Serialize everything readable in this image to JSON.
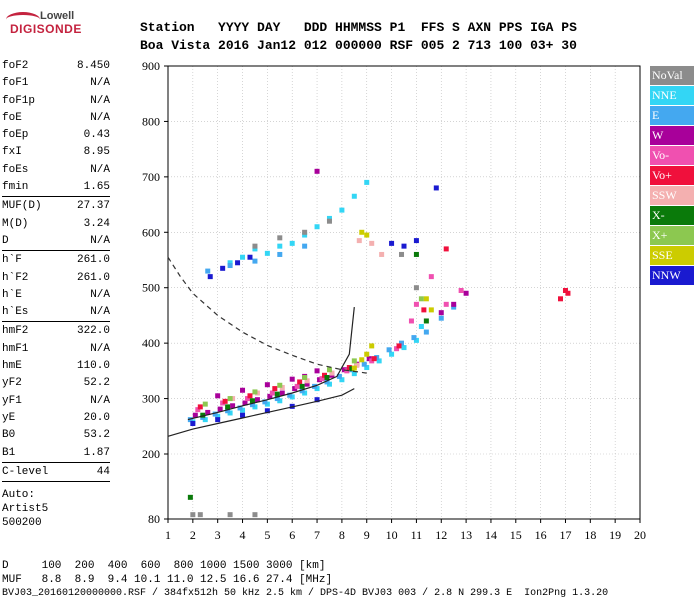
{
  "header": {
    "line1": "Station   YYYY DAY   DDD HHMMSS P1  FFS S AXN PPS IGA PS",
    "line2": "Boa Vista 2016 Jan12 012 000000 RSF 005 2 713 100 03+ 30"
  },
  "logo": {
    "top": "Lowell",
    "main": "DIGISONDE"
  },
  "params": [
    {
      "label": "foF2",
      "value": "8.450"
    },
    {
      "label": "foF1",
      "value": "N/A"
    },
    {
      "label": "foF1p",
      "value": "N/A"
    },
    {
      "label": "foE",
      "value": "N/A"
    },
    {
      "label": "foEp",
      "value": "0.43"
    },
    {
      "label": "fxI",
      "value": "8.95"
    },
    {
      "label": "foEs",
      "value": "N/A"
    },
    {
      "label": "fmin",
      "value": "1.65"
    },
    {
      "sep": true
    },
    {
      "label": "MUF(D)",
      "value": "27.37"
    },
    {
      "label": "M(D)",
      "value": "3.24"
    },
    {
      "label": "D",
      "value": "N/A"
    },
    {
      "sep": true
    },
    {
      "label": "h`F",
      "value": "261.0"
    },
    {
      "label": "h`F2",
      "value": "261.0"
    },
    {
      "label": "h`E",
      "value": "N/A"
    },
    {
      "label": "h`Es",
      "value": "N/A"
    },
    {
      "sep": true
    },
    {
      "label": "hmF2",
      "value": "322.0"
    },
    {
      "label": "hmF1",
      "value": "N/A"
    },
    {
      "label": "hmE",
      "value": "110.0"
    },
    {
      "label": "yF2",
      "value": "52.2"
    },
    {
      "label": "yF1",
      "value": "N/A"
    },
    {
      "label": "yE",
      "value": "20.0"
    },
    {
      "label": "B0",
      "value": "53.2"
    },
    {
      "label": "B1",
      "value": "1.87"
    },
    {
      "sep": true
    },
    {
      "label": "C-level",
      "value": "44"
    },
    {
      "sep": true
    }
  ],
  "auto_lines": [
    "Auto:",
    "Artist5",
    "500200"
  ],
  "legend": [
    {
      "label": "NoVal",
      "color": "#8c8c8c"
    },
    {
      "label": "NNE",
      "color": "#33d6f5"
    },
    {
      "label": "E",
      "color": "#44a8f0"
    },
    {
      "label": "W",
      "color": "#a8009a"
    },
    {
      "label": "Vo-",
      "color": "#f050b0"
    },
    {
      "label": "Vo+",
      "color": "#f0103c"
    },
    {
      "label": "SSW",
      "color": "#f4b0b0"
    },
    {
      "label": "X-",
      "color": "#0a7a0a"
    },
    {
      "label": "X+",
      "color": "#8cc850"
    },
    {
      "label": "SSE",
      "color": "#cccc00"
    },
    {
      "label": "NNW",
      "color": "#1a1ad0"
    }
  ],
  "footer": {
    "line1": "D     100  200  400  600  800 1000 1500 3000 [km]",
    "line2": "MUF   8.8  8.9  9.4 10.1 11.0 12.5 16.6 27.4 [MHz]",
    "line3": "BVJ03_20160120000000.RSF / 384fx512h 50 kHz 2.5 km / DPS-4D BVJ03 003 / 2.8 N 299.3 E  Ion2Png 1.3.20"
  },
  "chart_data": {
    "type": "scatter",
    "xlim": [
      1,
      20
    ],
    "ylim": [
      80,
      900
    ],
    "xticks": [
      "1",
      "2",
      "3",
      "4",
      "5",
      "6",
      "7",
      "8",
      "9",
      "10",
      "11",
      "12",
      "13",
      "14",
      "15",
      "16",
      "17",
      "18",
      "19",
      "20"
    ],
    "yticks": [
      "80",
      "200",
      "300",
      "400",
      "500",
      "600",
      "700",
      "800",
      "900"
    ],
    "ytick_values": [
      80,
      200,
      300,
      400,
      500,
      600,
      700,
      800,
      900
    ],
    "grid": true,
    "series": [
      {
        "label": "NNE",
        "color": "#33d6f5",
        "points": [
          [
            2.0,
            258
          ],
          [
            2.5,
            262
          ],
          [
            3.0,
            268
          ],
          [
            3.5,
            274
          ],
          [
            4.0,
            279
          ],
          [
            4.5,
            285
          ],
          [
            5.0,
            290
          ],
          [
            5.5,
            296
          ],
          [
            6.0,
            303
          ],
          [
            6.5,
            310
          ],
          [
            7.0,
            318
          ],
          [
            7.5,
            326
          ],
          [
            8.0,
            334
          ],
          [
            8.5,
            345
          ],
          [
            9.0,
            356
          ],
          [
            9.5,
            368
          ],
          [
            10.0,
            380
          ],
          [
            10.5,
            392
          ],
          [
            11.0,
            405
          ],
          [
            11.2,
            430
          ],
          [
            3.5,
            545
          ],
          [
            4.0,
            555
          ],
          [
            4.5,
            570
          ],
          [
            5.0,
            562
          ],
          [
            5.5,
            575
          ],
          [
            6.0,
            580
          ],
          [
            6.5,
            595
          ],
          [
            7.0,
            610
          ],
          [
            7.5,
            625
          ],
          [
            8.0,
            640
          ],
          [
            8.5,
            665
          ],
          [
            9.0,
            690
          ]
        ]
      },
      {
        "label": "E",
        "color": "#44a8f0",
        "points": [
          [
            1.9,
            262
          ],
          [
            2.4,
            266
          ],
          [
            2.9,
            272
          ],
          [
            3.4,
            278
          ],
          [
            3.9,
            283
          ],
          [
            4.4,
            289
          ],
          [
            4.9,
            294
          ],
          [
            5.4,
            300
          ],
          [
            5.9,
            306
          ],
          [
            6.4,
            314
          ],
          [
            6.9,
            322
          ],
          [
            7.4,
            330
          ],
          [
            7.9,
            340
          ],
          [
            8.4,
            352
          ],
          [
            8.9,
            362
          ],
          [
            9.4,
            374
          ],
          [
            9.9,
            388
          ],
          [
            10.4,
            400
          ],
          [
            10.9,
            410
          ],
          [
            11.4,
            420
          ],
          [
            12.0,
            445
          ],
          [
            12.5,
            465
          ],
          [
            2.6,
            530
          ],
          [
            3.5,
            540
          ],
          [
            4.5,
            548
          ],
          [
            5.5,
            560
          ],
          [
            6.5,
            575
          ]
        ]
      },
      {
        "label": "W",
        "color": "#a8009a",
        "points": [
          [
            2.1,
            270
          ],
          [
            2.6,
            275
          ],
          [
            3.1,
            281
          ],
          [
            3.6,
            287
          ],
          [
            4.1,
            292
          ],
          [
            4.6,
            298
          ],
          [
            5.1,
            304
          ],
          [
            5.6,
            310
          ],
          [
            6.1,
            318
          ],
          [
            6.6,
            326
          ],
          [
            7.1,
            334
          ],
          [
            7.6,
            342
          ],
          [
            8.1,
            352
          ],
          [
            8.6,
            362
          ],
          [
            9.1,
            372
          ],
          [
            3.0,
            305
          ],
          [
            4.0,
            315
          ],
          [
            5.0,
            325
          ],
          [
            6.0,
            335
          ],
          [
            7.0,
            350
          ],
          [
            12.0,
            455
          ],
          [
            12.5,
            470
          ],
          [
            13.0,
            490
          ],
          [
            7.0,
            710
          ],
          [
            6.5,
            340
          ]
        ]
      },
      {
        "label": "Vo-",
        "color": "#f050b0",
        "points": [
          [
            2.2,
            280
          ],
          [
            3.2,
            292
          ],
          [
            4.2,
            300
          ],
          [
            5.2,
            310
          ],
          [
            6.2,
            322
          ],
          [
            7.2,
            336
          ],
          [
            8.2,
            350
          ],
          [
            9.2,
            368
          ],
          [
            10.2,
            390
          ],
          [
            10.8,
            440
          ],
          [
            11.0,
            470
          ],
          [
            11.6,
            520
          ],
          [
            12.2,
            470
          ],
          [
            12.8,
            495
          ]
        ]
      },
      {
        "label": "Vo+",
        "color": "#f0103c",
        "points": [
          [
            2.3,
            285
          ],
          [
            3.3,
            295
          ],
          [
            4.3,
            305
          ],
          [
            5.3,
            318
          ],
          [
            6.3,
            330
          ],
          [
            7.3,
            342
          ],
          [
            8.3,
            356
          ],
          [
            9.3,
            372
          ],
          [
            10.3,
            395
          ],
          [
            11.3,
            460
          ],
          [
            12.2,
            570
          ],
          [
            16.8,
            480
          ],
          [
            17.0,
            495
          ],
          [
            17.1,
            490
          ]
        ]
      },
      {
        "label": "SSW",
        "color": "#f4b0b0",
        "points": [
          [
            3.6,
            300
          ],
          [
            4.6,
            310
          ],
          [
            5.6,
            320
          ],
          [
            6.6,
            332
          ],
          [
            7.6,
            346
          ],
          [
            8.6,
            360
          ],
          [
            9.6,
            560
          ],
          [
            9.2,
            580
          ],
          [
            8.7,
            585
          ]
        ]
      },
      {
        "label": "X-",
        "color": "#0a7a0a",
        "points": [
          [
            1.9,
            120
          ],
          [
            2.4,
            270
          ],
          [
            3.4,
            285
          ],
          [
            4.4,
            296
          ],
          [
            5.4,
            308
          ],
          [
            6.4,
            322
          ],
          [
            7.4,
            338
          ],
          [
            8.4,
            354
          ],
          [
            11.4,
            440
          ],
          [
            11.0,
            560
          ]
        ]
      },
      {
        "label": "X+",
        "color": "#8cc850",
        "points": [
          [
            2.5,
            290
          ],
          [
            3.5,
            300
          ],
          [
            4.5,
            312
          ],
          [
            5.5,
            324
          ],
          [
            6.5,
            338
          ],
          [
            7.5,
            352
          ],
          [
            8.5,
            368
          ],
          [
            11.2,
            480
          ]
        ]
      },
      {
        "label": "SSE",
        "color": "#cccc00",
        "points": [
          [
            8.5,
            355
          ],
          [
            8.8,
            370
          ],
          [
            9.0,
            380
          ],
          [
            9.2,
            395
          ],
          [
            8.8,
            600
          ],
          [
            9.0,
            595
          ],
          [
            11.4,
            480
          ],
          [
            11.6,
            460
          ]
        ]
      },
      {
        "label": "NNW",
        "color": "#1a1ad0",
        "points": [
          [
            2.7,
            520
          ],
          [
            3.2,
            535
          ],
          [
            3.8,
            545
          ],
          [
            4.3,
            555
          ],
          [
            2.0,
            255
          ],
          [
            3.0,
            262
          ],
          [
            4.0,
            270
          ],
          [
            5.0,
            278
          ],
          [
            6.0,
            286
          ],
          [
            7.0,
            298
          ],
          [
            10.0,
            580
          ],
          [
            10.5,
            575
          ],
          [
            11.0,
            585
          ],
          [
            11.8,
            680
          ]
        ]
      },
      {
        "label": "NoVal",
        "color": "#8c8c8c",
        "points": [
          [
            4.5,
            575
          ],
          [
            5.5,
            590
          ],
          [
            6.5,
            600
          ],
          [
            7.5,
            620
          ],
          [
            10.4,
            560
          ],
          [
            11.0,
            500
          ],
          [
            2.0,
            88
          ],
          [
            2.3,
            88
          ],
          [
            3.5,
            88
          ],
          [
            4.5,
            88
          ]
        ]
      }
    ],
    "curves": [
      {
        "name": "profile",
        "style": "dashed",
        "color": "#333333",
        "points": [
          [
            1.0,
            555
          ],
          [
            1.5,
            520
          ],
          [
            2.0,
            490
          ],
          [
            3.0,
            450
          ],
          [
            4.0,
            420
          ],
          [
            5.0,
            396
          ],
          [
            6.0,
            378
          ],
          [
            7.0,
            362
          ],
          [
            8.0,
            352
          ],
          [
            9.0,
            346
          ]
        ]
      },
      {
        "name": "trace",
        "style": "solid",
        "color": "#222222",
        "points": [
          [
            1.0,
            232
          ],
          [
            2.0,
            245
          ],
          [
            3.0,
            255
          ],
          [
            4.0,
            265
          ],
          [
            5.0,
            275
          ],
          [
            6.0,
            285
          ],
          [
            7.0,
            295
          ],
          [
            8.0,
            306
          ],
          [
            8.5,
            318
          ]
        ]
      },
      {
        "name": "trace2",
        "style": "solid",
        "color": "#222222",
        "points": [
          [
            1.8,
            262
          ],
          [
            3.0,
            275
          ],
          [
            4.0,
            287
          ],
          [
            5.0,
            298
          ],
          [
            6.0,
            310
          ],
          [
            7.0,
            324
          ],
          [
            7.8,
            340
          ],
          [
            8.3,
            380
          ],
          [
            8.5,
            465
          ]
        ]
      }
    ]
  }
}
